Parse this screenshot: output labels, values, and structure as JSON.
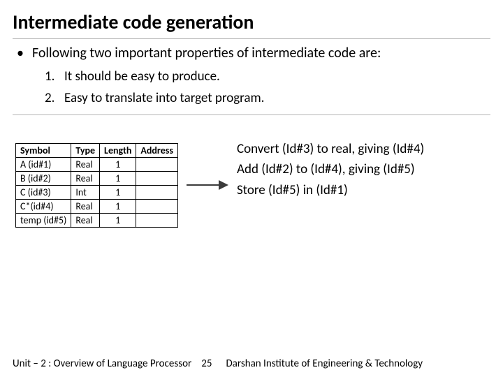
{
  "title": "Intermediate code generation",
  "bullet": "Following two important properties of intermediate code are:",
  "list": {
    "item1_num": "1.",
    "item1_text": "It should be easy to produce.",
    "item2_num": "2.",
    "item2_text": "Easy to translate into target program."
  },
  "table": {
    "headers": {
      "c0": "Symbol",
      "c1": "Type",
      "c2": "Length",
      "c3": "Address"
    },
    "rows": [
      {
        "c0": "A (id#1)",
        "c1": "Real",
        "c2": "1",
        "c3": ""
      },
      {
        "c0": "B (id#2)",
        "c1": "Real",
        "c2": "1",
        "c3": ""
      },
      {
        "c0": "C (id#3)",
        "c1": "Int",
        "c2": "1",
        "c3": ""
      },
      {
        "c0": "C*(id#4)",
        "c1": "Real",
        "c2": "1",
        "c3": ""
      },
      {
        "c0": "temp (id#5)",
        "c1": "Real",
        "c2": "1",
        "c3": ""
      }
    ]
  },
  "steps": {
    "s1": "Convert (Id#3) to real, giving (Id#4)",
    "s2": "Add (Id#2) to (Id#4), giving (Id#5)",
    "s3": "Store (Id#5) in (Id#1)"
  },
  "footer": {
    "left": "Unit – 2  : Overview of Language Processor",
    "page": "25",
    "right": "Darshan Institute of Engineering & Technology"
  },
  "colors": {
    "text": "#000000",
    "rule": "#b5b5b5",
    "arrow": "#3b3b3b",
    "background": "#ffffff"
  }
}
